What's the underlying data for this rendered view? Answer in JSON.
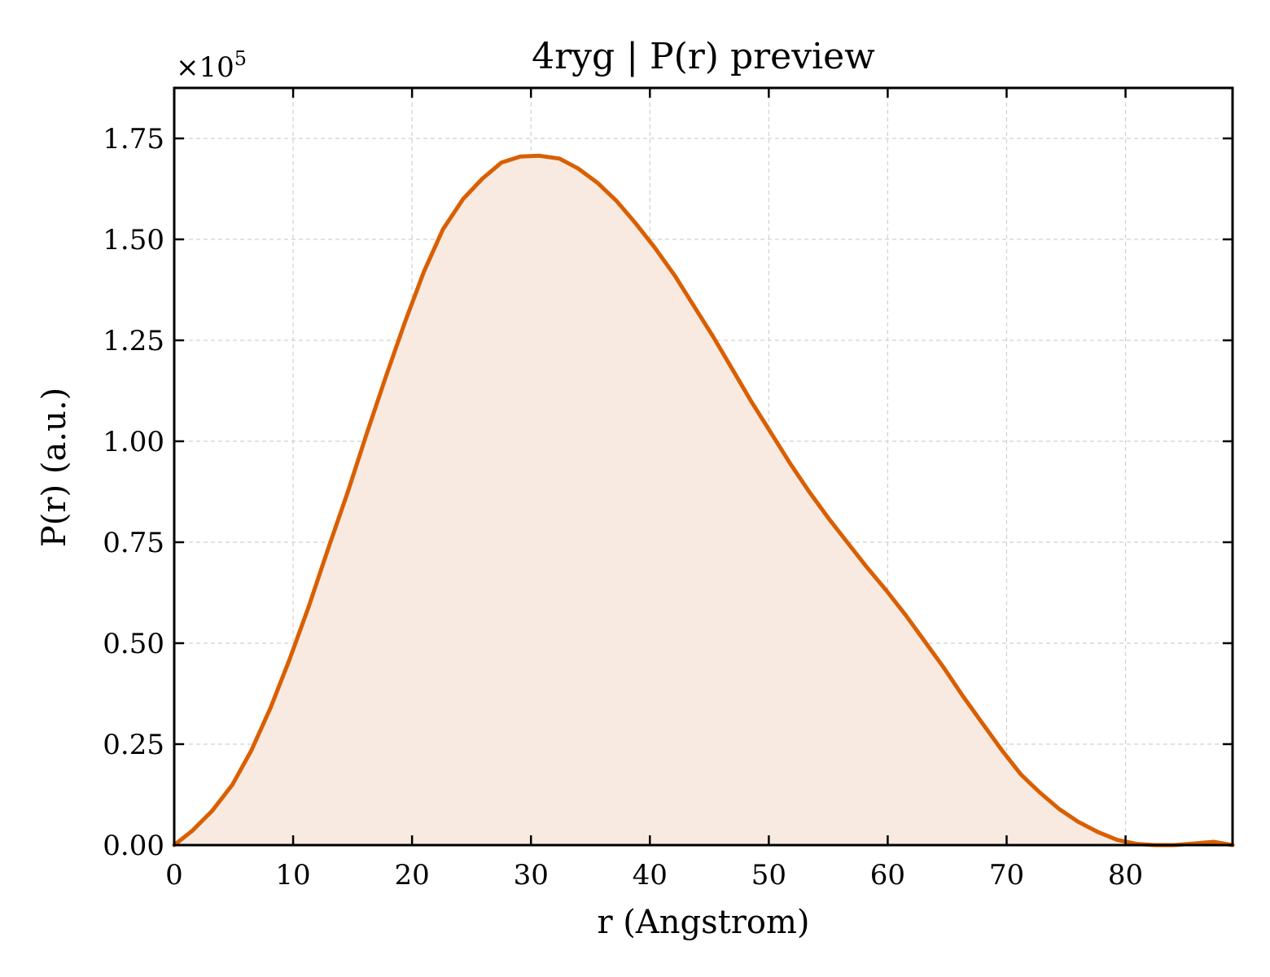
{
  "chart_data": {
    "type": "area",
    "title": "4ryg | P(r) preview",
    "xlabel": "r (Angstrom)",
    "ylabel": "P(r) (a.u.)",
    "y_offset_text": "×10",
    "y_offset_exponent": "5",
    "xlim": [
      0,
      89
    ],
    "ylim": [
      0,
      1.875
    ],
    "x_ticks": [
      0,
      10,
      20,
      30,
      40,
      50,
      60,
      70,
      80
    ],
    "x_tick_labels": [
      "0",
      "10",
      "20",
      "30",
      "40",
      "50",
      "60",
      "70",
      "80"
    ],
    "y_ticks": [
      0,
      0.25,
      0.5,
      0.75,
      1.0,
      1.25,
      1.5,
      1.75
    ],
    "y_tick_labels": [
      "0.00",
      "0.25",
      "0.50",
      "0.75",
      "1.00",
      "1.25",
      "1.50",
      "1.75"
    ],
    "grid": true,
    "line_color": "#d95f02",
    "fill_color": "#f8eae0",
    "series": [
      {
        "x": [
          0,
          1.5,
          3.2,
          4.9,
          6.5,
          8.1,
          9.7,
          11.3,
          12.9,
          14.6,
          16.2,
          17.8,
          19.4,
          21.0,
          22.6,
          24.3,
          25.9,
          27.5,
          29.1,
          30.7,
          32.4,
          34.0,
          35.6,
          37.2,
          38.8,
          40.4,
          42.1,
          43.7,
          45.3,
          46.9,
          48.5,
          50.2,
          51.8,
          53.4,
          55.0,
          56.6,
          58.2,
          59.9,
          61.5,
          63.1,
          64.7,
          66.3,
          68.0,
          69.6,
          71.2,
          72.8,
          74.4,
          76.0,
          77.7,
          79.3,
          80.9,
          82.5,
          84.1,
          85.8,
          87.4,
          89.0
        ],
        "y": [
          0.0,
          0.035,
          0.085,
          0.15,
          0.235,
          0.34,
          0.46,
          0.59,
          0.73,
          0.875,
          1.02,
          1.16,
          1.295,
          1.42,
          1.525,
          1.6,
          1.65,
          1.69,
          1.705,
          1.707,
          1.7,
          1.675,
          1.64,
          1.595,
          1.54,
          1.48,
          1.41,
          1.335,
          1.26,
          1.18,
          1.1,
          1.02,
          0.945,
          0.875,
          0.81,
          0.75,
          0.69,
          0.63,
          0.57,
          0.505,
          0.44,
          0.37,
          0.3,
          0.235,
          0.175,
          0.13,
          0.09,
          0.058,
          0.032,
          0.013,
          0.003,
          0.0,
          0.0,
          0.004,
          0.008,
          0.0
        ]
      }
    ]
  }
}
